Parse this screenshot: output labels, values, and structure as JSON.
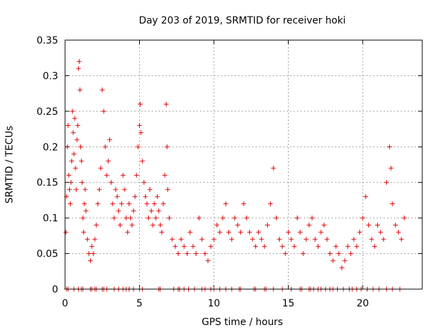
{
  "chart_data": {
    "type": "scatter",
    "title": "Day 203 of 2019, SRMTID for receiver hoki",
    "xlabel": "GPS time / hours",
    "ylabel": "SRMTID / TECUs",
    "xlim": [
      0,
      24
    ],
    "ylim": [
      0,
      0.35
    ],
    "xticks": [
      0,
      5,
      10,
      15,
      20
    ],
    "xtick_labels": [
      "0",
      "5",
      "10",
      "15",
      "20"
    ],
    "yticks": [
      0,
      0.05,
      0.1,
      0.15,
      0.2,
      0.25,
      0.3,
      0.35
    ],
    "ytick_labels": [
      "0",
      "0.05",
      "0.1",
      "0.15",
      "0.2",
      "0.25",
      "0.3",
      "0.35"
    ],
    "grid": true,
    "marker": "+",
    "color": "#e00000",
    "series": [
      {
        "name": "SRMTID",
        "points": [
          [
            0.05,
            0.08
          ],
          [
            0.1,
            0.13
          ],
          [
            0.15,
            0.2
          ],
          [
            0.2,
            0.23
          ],
          [
            0.25,
            0.16
          ],
          [
            0.3,
            0.14
          ],
          [
            0.35,
            0.12
          ],
          [
            0.4,
            0.15
          ],
          [
            0.45,
            0.18
          ],
          [
            0.5,
            0.25
          ],
          [
            0.55,
            0.22
          ],
          [
            0.6,
            0.19
          ],
          [
            0.65,
            0.24
          ],
          [
            0.7,
            0.17
          ],
          [
            0.75,
            0.14
          ],
          [
            0.8,
            0.21
          ],
          [
            0.85,
            0.23
          ],
          [
            0.9,
            0.31
          ],
          [
            0.95,
            0.32
          ],
          [
            1.0,
            0.28
          ],
          [
            1.05,
            0.2
          ],
          [
            1.1,
            0.18
          ],
          [
            1.15,
            0.15
          ],
          [
            1.2,
            0.1
          ],
          [
            1.25,
            0.08
          ],
          [
            1.3,
            0.12
          ],
          [
            1.35,
            0.14
          ],
          [
            1.4,
            0.11
          ],
          [
            1.5,
            0.07
          ],
          [
            1.6,
            0.05
          ],
          [
            1.7,
            0.04
          ],
          [
            1.8,
            0.06
          ],
          [
            1.9,
            0.05
          ],
          [
            2.0,
            0.07
          ],
          [
            2.1,
            0.09
          ],
          [
            2.2,
            0.12
          ],
          [
            2.3,
            0.14
          ],
          [
            2.4,
            0.17
          ],
          [
            2.5,
            0.28
          ],
          [
            2.6,
            0.25
          ],
          [
            2.7,
            0.2
          ],
          [
            2.8,
            0.16
          ],
          [
            2.9,
            0.18
          ],
          [
            3.0,
            0.21
          ],
          [
            3.1,
            0.15
          ],
          [
            3.2,
            0.12
          ],
          [
            3.3,
            0.1
          ],
          [
            3.4,
            0.14
          ],
          [
            3.5,
            0.13
          ],
          [
            3.6,
            0.11
          ],
          [
            3.7,
            0.09
          ],
          [
            3.8,
            0.12
          ],
          [
            3.9,
            0.16
          ],
          [
            4.0,
            0.14
          ],
          [
            4.1,
            0.1
          ],
          [
            4.2,
            0.08
          ],
          [
            4.3,
            0.12
          ],
          [
            4.4,
            0.1
          ],
          [
            4.5,
            0.09
          ],
          [
            4.6,
            0.11
          ],
          [
            4.7,
            0.13
          ],
          [
            4.8,
            0.16
          ],
          [
            4.9,
            0.2
          ],
          [
            5.0,
            0.23
          ],
          [
            5.05,
            0.26
          ],
          [
            5.1,
            0.22
          ],
          [
            5.2,
            0.18
          ],
          [
            5.3,
            0.15
          ],
          [
            5.4,
            0.13
          ],
          [
            5.5,
            0.12
          ],
          [
            5.6,
            0.1
          ],
          [
            5.7,
            0.14
          ],
          [
            5.8,
            0.11
          ],
          [
            5.9,
            0.09
          ],
          [
            6.0,
            0.12
          ],
          [
            6.1,
            0.1
          ],
          [
            6.2,
            0.13
          ],
          [
            6.3,
            0.11
          ],
          [
            6.4,
            0.09
          ],
          [
            6.5,
            0.08
          ],
          [
            6.6,
            0.12
          ],
          [
            6.7,
            0.16
          ],
          [
            6.8,
            0.26
          ],
          [
            6.85,
            0.2
          ],
          [
            6.9,
            0.14
          ],
          [
            7.0,
            0.1
          ],
          [
            7.2,
            0.07
          ],
          [
            7.4,
            0.06
          ],
          [
            7.6,
            0.05
          ],
          [
            7.8,
            0.07
          ],
          [
            8.0,
            0.06
          ],
          [
            8.2,
            0.05
          ],
          [
            8.4,
            0.08
          ],
          [
            8.6,
            0.06
          ],
          [
            8.8,
            0.05
          ],
          [
            9.0,
            0.1
          ],
          [
            9.2,
            0.07
          ],
          [
            9.4,
            0.05
          ],
          [
            9.6,
            0.04
          ],
          [
            9.8,
            0.06
          ],
          [
            10.0,
            0.07
          ],
          [
            10.2,
            0.09
          ],
          [
            10.4,
            0.08
          ],
          [
            10.6,
            0.1
          ],
          [
            10.8,
            0.12
          ],
          [
            11.0,
            0.08
          ],
          [
            11.2,
            0.07
          ],
          [
            11.4,
            0.1
          ],
          [
            11.6,
            0.09
          ],
          [
            11.8,
            0.08
          ],
          [
            12.0,
            0.12
          ],
          [
            12.2,
            0.1
          ],
          [
            12.4,
            0.08
          ],
          [
            12.6,
            0.07
          ],
          [
            12.8,
            0.06
          ],
          [
            13.0,
            0.08
          ],
          [
            13.2,
            0.07
          ],
          [
            13.4,
            0.06
          ],
          [
            13.6,
            0.09
          ],
          [
            13.8,
            0.12
          ],
          [
            14.0,
            0.17
          ],
          [
            14.2,
            0.1
          ],
          [
            14.4,
            0.07
          ],
          [
            14.6,
            0.06
          ],
          [
            14.8,
            0.05
          ],
          [
            15.0,
            0.08
          ],
          [
            15.2,
            0.07
          ],
          [
            15.4,
            0.06
          ],
          [
            15.6,
            0.1
          ],
          [
            15.8,
            0.08
          ],
          [
            16.0,
            0.05
          ],
          [
            16.2,
            0.07
          ],
          [
            16.4,
            0.09
          ],
          [
            16.6,
            0.1
          ],
          [
            16.8,
            0.07
          ],
          [
            17.0,
            0.06
          ],
          [
            17.2,
            0.08
          ],
          [
            17.4,
            0.09
          ],
          [
            17.6,
            0.07
          ],
          [
            17.8,
            0.05
          ],
          [
            18.0,
            0.04
          ],
          [
            18.2,
            0.06
          ],
          [
            18.4,
            0.05
          ],
          [
            18.6,
            0.03
          ],
          [
            18.8,
            0.04
          ],
          [
            19.0,
            0.06
          ],
          [
            19.2,
            0.05
          ],
          [
            19.4,
            0.07
          ],
          [
            19.6,
            0.06
          ],
          [
            19.8,
            0.08
          ],
          [
            20.0,
            0.1
          ],
          [
            20.2,
            0.13
          ],
          [
            20.4,
            0.09
          ],
          [
            20.6,
            0.07
          ],
          [
            20.8,
            0.06
          ],
          [
            21.0,
            0.09
          ],
          [
            21.2,
            0.08
          ],
          [
            21.4,
            0.07
          ],
          [
            21.6,
            0.15
          ],
          [
            21.8,
            0.2
          ],
          [
            21.9,
            0.17
          ],
          [
            22.0,
            0.12
          ],
          [
            22.2,
            0.09
          ],
          [
            22.4,
            0.08
          ],
          [
            22.6,
            0.07
          ],
          [
            22.8,
            0.1
          ]
        ]
      }
    ],
    "zero_marks_x": [
      0.1,
      0.2,
      0.6,
      0.9,
      1.1,
      1.2,
      1.7,
      1.8,
      2.0,
      2.1,
      2.5,
      2.6,
      2.8,
      3.3,
      3.6,
      3.9,
      4.1,
      4.3,
      4.6,
      5.0,
      5.2,
      6.3,
      6.4,
      7.3,
      7.6,
      7.7,
      8.0,
      8.3,
      8.7,
      9.2,
      9.4,
      9.8,
      10.0,
      10.4,
      10.8,
      11.2,
      11.7,
      11.8,
      12.7,
      12.8,
      13.4,
      13.5,
      14.0,
      14.6,
      15.2,
      15.8,
      15.9,
      16.4,
      16.5,
      16.7,
      17.0,
      17.2,
      17.5,
      17.8,
      18.0,
      18.3,
      18.7,
      19.1,
      19.3,
      19.6,
      19.9,
      20.3,
      20.7,
      21.1,
      21.6,
      22.0,
      22.5
    ]
  }
}
